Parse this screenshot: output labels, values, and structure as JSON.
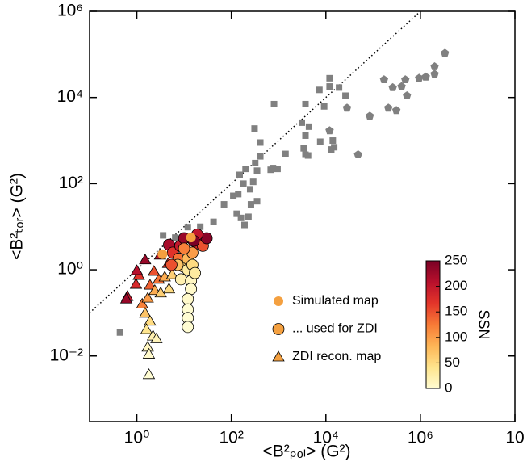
{
  "chart_data": {
    "type": "scatter",
    "xlabel": "<B²ₚₒₗ> (G²)",
    "ylabel": "<B²ₜₒᵣ> (G²)",
    "xlog": true,
    "ylog": true,
    "xlim": [
      0.1,
      100000000
    ],
    "ylim": [
      0.0003,
      1000000
    ],
    "xticks": [
      {
        "value": 1,
        "label": "10⁰"
      },
      {
        "value": 100,
        "label": "10²"
      },
      {
        "value": 10000,
        "label": "10⁴"
      },
      {
        "value": 1000000,
        "label": "10⁶"
      },
      {
        "value": 100000000,
        "label": "10"
      }
    ],
    "yticks": [
      {
        "value": 0.01,
        "label": "10⁻²"
      },
      {
        "value": 1,
        "label": "10⁰"
      },
      {
        "value": 100,
        "label": "10²"
      },
      {
        "value": 10000,
        "label": "10⁴"
      },
      {
        "value": 1000000,
        "label": "10⁶"
      }
    ],
    "colorbar": {
      "label": "SSN",
      "clim": [
        0,
        250
      ],
      "ticks": [
        0,
        50,
        100,
        150,
        200,
        250
      ],
      "colormap": [
        "#fffcd2",
        "#fee48c",
        "#fdb556",
        "#f77a36",
        "#e3352a",
        "#b8102c",
        "#7a0025"
      ]
    },
    "series": [
      {
        "marker": "square",
        "color": "#808080",
        "x": [
          0.44,
          3.6,
          6.5,
          12,
          22,
          42,
          70,
          110,
          150,
          130,
          160,
          190,
          230,
          350,
          250,
          290,
          350,
          200,
          320,
          410,
          410,
          310,
          260,
          180,
          140,
          760,
          950,
          1400,
          800,
          680,
          3400,
          3700,
          4200,
          3100,
          4400,
          3700,
          9200,
          12000,
          12000,
          19000,
          26000,
          7300,
          15000,
          13000,
          7600,
          3700,
          14000
        ],
        "y": [
          0.035,
          6.3,
          5.6,
          9.8,
          10,
          13,
          33,
          52,
          160,
          20,
          16,
          11,
          17,
          39,
          74,
          110,
          200,
          220,
          300,
          430,
          900,
          1900,
          33,
          100,
          57,
          230,
          220,
          490,
          7000,
          210,
          660,
          470,
          450,
          2600,
          2100,
          1300,
          6200,
          28000,
          18000,
          17000,
          11000,
          15000,
          700,
          620,
          940,
          7000,
          1000
        ]
      },
      {
        "marker": "pentagon",
        "color": "#808080",
        "x": [
          12000,
          28000,
          48000,
          85000,
          170000,
          260000,
          310000,
          210000,
          400000,
          480000,
          520000,
          940000,
          1300000,
          2000000,
          2000000,
          3300000
        ],
        "y": [
          1700,
          5700,
          470,
          3700,
          26000,
          17000,
          5000,
          5700,
          18000,
          26000,
          11000,
          28000,
          30000,
          35000,
          52000,
          107000
        ]
      },
      {
        "name": "ZDI recon. map",
        "marker": "triangle",
        "color": "#f4a040",
        "x": [
          1.5,
          3.1,
          4.6,
          0.63,
          0.6,
          0.96,
          1.1,
          1.9,
          2.9,
          3.9,
          5.6,
          1.3,
          1.7,
          2.4,
          3.2,
          4.8,
          1.5,
          1.9,
          1.6,
          2.2,
          1.7,
          1.8,
          1.8,
          2.6,
          1.0,
          2.3
        ],
        "y": [
          1.7,
          2.2,
          1.4,
          0.24,
          0.21,
          0.46,
          0.74,
          0.44,
          0.6,
          0.68,
          0.77,
          0.16,
          0.22,
          0.33,
          0.29,
          0.36,
          0.098,
          0.064,
          0.041,
          0.029,
          0.016,
          0.011,
          0.0037,
          0.025,
          0.96,
          0.92
        ],
        "ssn": [
          230,
          200,
          170,
          200,
          230,
          180,
          170,
          140,
          130,
          90,
          60,
          120,
          100,
          90,
          60,
          50,
          70,
          50,
          40,
          20,
          10,
          5,
          0,
          15,
          210,
          150
        ]
      },
      {
        "name": "... used for ZDI",
        "marker": "circle-edge",
        "color": "#f4a040",
        "x": [
          4.8,
          5.8,
          7.6,
          8.3,
          10,
          15,
          19,
          25,
          30,
          19,
          9.6,
          12,
          8.6,
          12,
          15,
          15,
          14,
          14,
          12,
          12,
          12,
          12,
          7.3,
          5.4,
          17,
          16,
          10
        ],
        "y": [
          3.8,
          2.5,
          1.8,
          3.6,
          5.4,
          5.1,
          4.1,
          3.6,
          5.4,
          6.6,
          1.2,
          1,
          0.6,
          1.8,
          2.5,
          1.3,
          0.55,
          0.36,
          0.21,
          0.12,
          0.076,
          0.047,
          1.3,
          1.3,
          0.84,
          4.7,
          3.1
        ],
        "ssn": [
          220,
          170,
          130,
          200,
          230,
          220,
          180,
          150,
          240,
          200,
          60,
          30,
          20,
          80,
          100,
          50,
          10,
          5,
          5,
          0,
          0,
          0,
          70,
          150,
          30,
          250,
          120
        ]
      },
      {
        "name": "Simulated map",
        "marker": "circle",
        "color": "#f4a040",
        "x": [
          3.5,
          14
        ],
        "y": [
          2.3,
          5.6
        ]
      }
    ]
  }
}
